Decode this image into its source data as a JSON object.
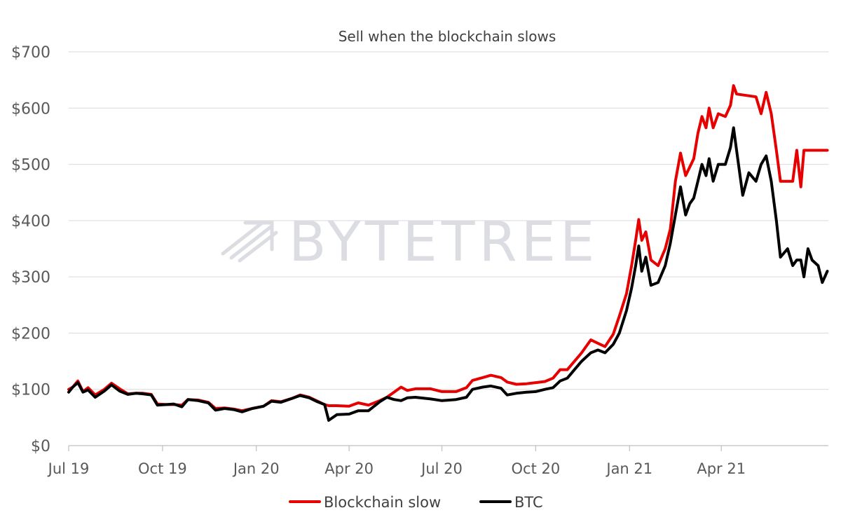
{
  "chart_data": {
    "type": "line",
    "title": "Sell when the blockchain slows",
    "xlabel": "",
    "ylabel": "",
    "watermark": "BYTETREE",
    "x_start": "2019-07",
    "x_end": "2021-07",
    "x_ticks": [
      "Jul 19",
      "Oct 19",
      "Jan 20",
      "Apr 20",
      "Jul 20",
      "Oct 20",
      "Jan 21",
      "Apr 21"
    ],
    "y_ticks": [
      "$0",
      "$100",
      "$200",
      "$300",
      "$400",
      "$500",
      "$600",
      "$700"
    ],
    "ylim": [
      0,
      700
    ],
    "grid": "horizontal",
    "legend_position": "bottom",
    "series": [
      {
        "name": "Blockchain slow",
        "color": "#e60000",
        "points": [
          [
            "2019-07-01",
            100
          ],
          [
            "2019-07-05",
            104
          ],
          [
            "2019-07-10",
            115
          ],
          [
            "2019-07-15",
            96
          ],
          [
            "2019-07-20",
            103
          ],
          [
            "2019-07-27",
            90
          ],
          [
            "2019-08-05",
            100
          ],
          [
            "2019-08-12",
            111
          ],
          [
            "2019-08-20",
            101
          ],
          [
            "2019-08-28",
            92
          ],
          [
            "2019-09-05",
            93
          ],
          [
            "2019-09-12",
            93
          ],
          [
            "2019-09-20",
            91
          ],
          [
            "2019-09-26",
            74
          ],
          [
            "2019-10-05",
            73
          ],
          [
            "2019-10-12",
            73
          ],
          [
            "2019-10-20",
            72
          ],
          [
            "2019-10-26",
            82
          ],
          [
            "2019-11-05",
            81
          ],
          [
            "2019-11-15",
            77
          ],
          [
            "2019-11-22",
            66
          ],
          [
            "2019-12-01",
            67
          ],
          [
            "2019-12-10",
            65
          ],
          [
            "2019-12-18",
            62
          ],
          [
            "2019-12-28",
            66
          ],
          [
            "2020-01-08",
            70
          ],
          [
            "2020-01-16",
            80
          ],
          [
            "2020-01-25",
            78
          ],
          [
            "2020-02-05",
            84
          ],
          [
            "2020-02-13",
            90
          ],
          [
            "2020-02-22",
            86
          ],
          [
            "2020-03-01",
            79
          ],
          [
            "2020-03-08",
            73
          ],
          [
            "2020-03-12",
            71
          ],
          [
            "2020-03-20",
            71
          ],
          [
            "2020-04-01",
            70
          ],
          [
            "2020-04-10",
            76
          ],
          [
            "2020-04-20",
            72
          ],
          [
            "2020-05-01",
            80
          ],
          [
            "2020-05-08",
            86
          ],
          [
            "2020-05-15",
            95
          ],
          [
            "2020-05-22",
            104
          ],
          [
            "2020-05-28",
            98
          ],
          [
            "2020-06-05",
            101
          ],
          [
            "2020-06-20",
            101
          ],
          [
            "2020-07-01",
            96
          ],
          [
            "2020-07-15",
            96
          ],
          [
            "2020-07-25",
            103
          ],
          [
            "2020-07-31",
            116
          ],
          [
            "2020-08-10",
            121
          ],
          [
            "2020-08-18",
            125
          ],
          [
            "2020-08-28",
            121
          ],
          [
            "2020-09-03",
            113
          ],
          [
            "2020-09-12",
            109
          ],
          [
            "2020-09-22",
            110
          ],
          [
            "2020-10-01",
            112
          ],
          [
            "2020-10-10",
            114
          ],
          [
            "2020-10-18",
            120
          ],
          [
            "2020-10-25",
            135
          ],
          [
            "2020-11-01",
            135
          ],
          [
            "2020-11-08",
            150
          ],
          [
            "2020-11-15",
            165
          ],
          [
            "2020-11-24",
            188
          ],
          [
            "2020-12-01",
            182
          ],
          [
            "2020-12-08",
            176
          ],
          [
            "2020-12-16",
            198
          ],
          [
            "2020-12-22",
            230
          ],
          [
            "2020-12-29",
            270
          ],
          [
            "2021-01-03",
            320
          ],
          [
            "2021-01-07",
            365
          ],
          [
            "2021-01-10",
            402
          ],
          [
            "2021-01-13",
            365
          ],
          [
            "2021-01-17",
            380
          ],
          [
            "2021-01-22",
            330
          ],
          [
            "2021-01-29",
            320
          ],
          [
            "2021-02-05",
            350
          ],
          [
            "2021-02-10",
            385
          ],
          [
            "2021-02-15",
            470
          ],
          [
            "2021-02-20",
            520
          ],
          [
            "2021-02-25",
            480
          ],
          [
            "2021-03-01",
            495
          ],
          [
            "2021-03-05",
            510
          ],
          [
            "2021-03-09",
            555
          ],
          [
            "2021-03-13",
            585
          ],
          [
            "2021-03-17",
            565
          ],
          [
            "2021-03-20",
            600
          ],
          [
            "2021-03-24",
            565
          ],
          [
            "2021-03-29",
            590
          ],
          [
            "2021-04-05",
            585
          ],
          [
            "2021-04-10",
            605
          ],
          [
            "2021-04-13",
            640
          ],
          [
            "2021-04-16",
            625
          ],
          [
            "2021-05-05",
            620
          ],
          [
            "2021-05-10",
            590
          ],
          [
            "2021-05-15",
            628
          ],
          [
            "2021-05-20",
            590
          ],
          [
            "2021-05-25",
            525
          ],
          [
            "2021-05-29",
            470
          ],
          [
            "2021-06-10",
            470
          ],
          [
            "2021-06-14",
            525
          ],
          [
            "2021-06-18",
            460
          ],
          [
            "2021-06-21",
            525
          ],
          [
            "2021-07-01",
            525
          ],
          [
            "2021-07-14",
            525
          ]
        ]
      },
      {
        "name": "BTC",
        "color": "#000000",
        "points": [
          [
            "2019-07-01",
            95
          ],
          [
            "2019-07-05",
            104
          ],
          [
            "2019-07-10",
            112
          ],
          [
            "2019-07-15",
            95
          ],
          [
            "2019-07-20",
            99
          ],
          [
            "2019-07-27",
            86
          ],
          [
            "2019-08-05",
            97
          ],
          [
            "2019-08-12",
            108
          ],
          [
            "2019-08-20",
            97
          ],
          [
            "2019-08-28",
            91
          ],
          [
            "2019-09-05",
            93
          ],
          [
            "2019-09-12",
            92
          ],
          [
            "2019-09-20",
            90
          ],
          [
            "2019-09-26",
            72
          ],
          [
            "2019-10-05",
            73
          ],
          [
            "2019-10-12",
            74
          ],
          [
            "2019-10-20",
            69
          ],
          [
            "2019-10-26",
            82
          ],
          [
            "2019-11-05",
            80
          ],
          [
            "2019-11-15",
            76
          ],
          [
            "2019-11-22",
            63
          ],
          [
            "2019-12-01",
            66
          ],
          [
            "2019-12-10",
            64
          ],
          [
            "2019-12-18",
            60
          ],
          [
            "2019-12-28",
            66
          ],
          [
            "2020-01-08",
            70
          ],
          [
            "2020-01-16",
            79
          ],
          [
            "2020-01-25",
            77
          ],
          [
            "2020-02-05",
            84
          ],
          [
            "2020-02-13",
            89
          ],
          [
            "2020-02-22",
            85
          ],
          [
            "2020-03-01",
            78
          ],
          [
            "2020-03-08",
            73
          ],
          [
            "2020-03-12",
            45
          ],
          [
            "2020-03-20",
            55
          ],
          [
            "2020-04-01",
            56
          ],
          [
            "2020-04-10",
            62
          ],
          [
            "2020-04-20",
            62
          ],
          [
            "2020-05-01",
            78
          ],
          [
            "2020-05-08",
            86
          ],
          [
            "2020-05-15",
            82
          ],
          [
            "2020-05-22",
            80
          ],
          [
            "2020-05-28",
            85
          ],
          [
            "2020-06-05",
            86
          ],
          [
            "2020-06-20",
            83
          ],
          [
            "2020-07-01",
            80
          ],
          [
            "2020-07-15",
            82
          ],
          [
            "2020-07-25",
            86
          ],
          [
            "2020-07-31",
            100
          ],
          [
            "2020-08-10",
            104
          ],
          [
            "2020-08-18",
            106
          ],
          [
            "2020-08-28",
            102
          ],
          [
            "2020-09-03",
            90
          ],
          [
            "2020-09-12",
            93
          ],
          [
            "2020-09-22",
            95
          ],
          [
            "2020-10-01",
            96
          ],
          [
            "2020-10-10",
            100
          ],
          [
            "2020-10-18",
            103
          ],
          [
            "2020-10-25",
            115
          ],
          [
            "2020-11-01",
            120
          ],
          [
            "2020-11-08",
            135
          ],
          [
            "2020-11-15",
            150
          ],
          [
            "2020-11-24",
            165
          ],
          [
            "2020-12-01",
            170
          ],
          [
            "2020-12-08",
            165
          ],
          [
            "2020-12-16",
            180
          ],
          [
            "2020-12-22",
            200
          ],
          [
            "2020-12-29",
            240
          ],
          [
            "2021-01-03",
            280
          ],
          [
            "2021-01-07",
            320
          ],
          [
            "2021-01-10",
            355
          ],
          [
            "2021-01-13",
            310
          ],
          [
            "2021-01-17",
            335
          ],
          [
            "2021-01-22",
            285
          ],
          [
            "2021-01-29",
            290
          ],
          [
            "2021-02-05",
            320
          ],
          [
            "2021-02-10",
            360
          ],
          [
            "2021-02-15",
            410
          ],
          [
            "2021-02-20",
            460
          ],
          [
            "2021-02-25",
            410
          ],
          [
            "2021-03-01",
            430
          ],
          [
            "2021-03-05",
            440
          ],
          [
            "2021-03-09",
            470
          ],
          [
            "2021-03-13",
            500
          ],
          [
            "2021-03-17",
            480
          ],
          [
            "2021-03-20",
            510
          ],
          [
            "2021-03-24",
            470
          ],
          [
            "2021-03-29",
            500
          ],
          [
            "2021-04-05",
            500
          ],
          [
            "2021-04-10",
            530
          ],
          [
            "2021-04-13",
            565
          ],
          [
            "2021-04-16",
            525
          ],
          [
            "2021-04-22",
            445
          ],
          [
            "2021-04-28",
            485
          ],
          [
            "2021-05-05",
            470
          ],
          [
            "2021-05-10",
            500
          ],
          [
            "2021-05-15",
            515
          ],
          [
            "2021-05-20",
            470
          ],
          [
            "2021-05-25",
            400
          ],
          [
            "2021-05-29",
            335
          ],
          [
            "2021-06-05",
            350
          ],
          [
            "2021-06-10",
            320
          ],
          [
            "2021-06-14",
            330
          ],
          [
            "2021-06-18",
            330
          ],
          [
            "2021-06-21",
            300
          ],
          [
            "2021-06-25",
            350
          ],
          [
            "2021-06-29",
            330
          ],
          [
            "2021-07-05",
            320
          ],
          [
            "2021-07-09",
            290
          ],
          [
            "2021-07-14",
            310
          ]
        ]
      }
    ]
  }
}
